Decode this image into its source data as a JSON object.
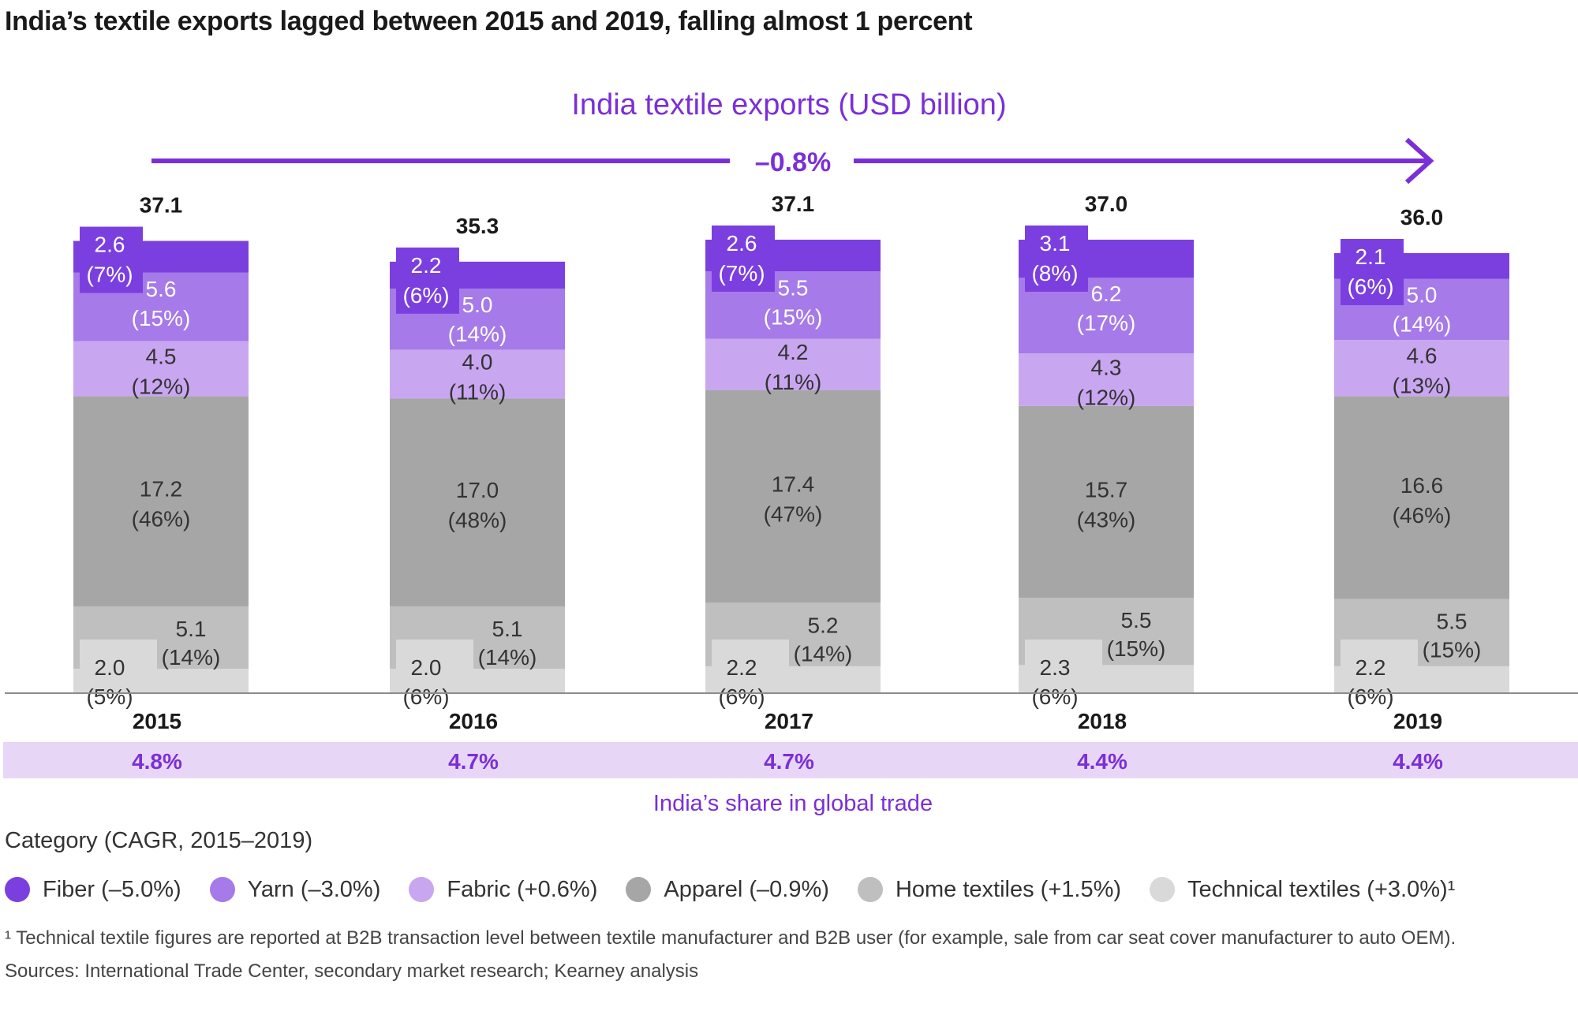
{
  "title": "India’s textile exports lagged between 2015 and 2019, falling almost 1 percent",
  "subtitle": "India textile exports (USD billion)",
  "cagr_label": "–0.8%",
  "share_caption": "India’s share in global trade",
  "category_title": "Category (CAGR, 2015–2019)",
  "footnote": "¹ Technical textile figures are reported at B2B transaction level between textile manufacturer and B2B user (for example, sale from car seat cover manufacturer to auto OEM).",
  "source": "Sources: International Trade Center, secondary market research; Kearney analysis",
  "colors": {
    "Fiber": "#7b3fe0",
    "Yarn": "#a67ae8",
    "Fabric": "#c9a6f0",
    "Apparel": "#a6a6a6",
    "Home textiles": "#bfbfbf",
    "Technical textiles": "#d9d9d9",
    "accent": "#7b2fd6",
    "share_band": "#e8d6f7"
  },
  "legend": [
    {
      "key": "Fiber",
      "label": "Fiber (–5.0%)"
    },
    {
      "key": "Yarn",
      "label": "Yarn (–3.0%)"
    },
    {
      "key": "Fabric",
      "label": "Fabric (+0.6%)"
    },
    {
      "key": "Apparel",
      "label": "Apparel (–0.9%)"
    },
    {
      "key": "Home textiles",
      "label": "Home textiles (+1.5%)"
    },
    {
      "key": "Technical textiles",
      "label": "Technical textiles (+3.0%)¹"
    }
  ],
  "chart_data": {
    "type": "bar",
    "stacked": true,
    "categories": [
      "2015",
      "2016",
      "2017",
      "2018",
      "2019"
    ],
    "totals": [
      "37.1",
      "35.3",
      "37.1",
      "37.0",
      "36.0"
    ],
    "share_in_global_trade": [
      "4.8%",
      "4.7%",
      "4.7%",
      "4.4%",
      "4.4%"
    ],
    "series": [
      {
        "name": "Technical textiles",
        "values": [
          2.0,
          2.0,
          2.2,
          2.3,
          2.2
        ],
        "labels": [
          "2.0",
          "2.0",
          "2.2",
          "2.3",
          "2.2"
        ],
        "pct": [
          "(5%)",
          "(6%)",
          "(6%)",
          "(6%)",
          "(6%)"
        ]
      },
      {
        "name": "Home textiles",
        "values": [
          5.1,
          5.1,
          5.2,
          5.5,
          5.5
        ],
        "labels": [
          "5.1",
          "5.1",
          "5.2",
          "5.5",
          "5.5"
        ],
        "pct": [
          "(14%)",
          "(14%)",
          "(14%)",
          "(15%)",
          "(15%)"
        ]
      },
      {
        "name": "Apparel",
        "values": [
          17.2,
          17.0,
          17.4,
          15.7,
          16.6
        ],
        "labels": [
          "17.2",
          "17.0",
          "17.4",
          "15.7",
          "16.6"
        ],
        "pct": [
          "(46%)",
          "(48%)",
          "(47%)",
          "(43%)",
          "(46%)"
        ]
      },
      {
        "name": "Fabric",
        "values": [
          4.5,
          4.0,
          4.2,
          4.3,
          4.6
        ],
        "labels": [
          "4.5",
          "4.0",
          "4.2",
          "4.3",
          "4.6"
        ],
        "pct": [
          "(12%)",
          "(11%)",
          "(11%)",
          "(12%)",
          "(13%)"
        ]
      },
      {
        "name": "Yarn",
        "values": [
          5.6,
          5.0,
          5.5,
          6.2,
          5.0
        ],
        "labels": [
          "5.6",
          "5.0",
          "5.5",
          "6.2",
          "5.0"
        ],
        "pct": [
          "(15%)",
          "(14%)",
          "(15%)",
          "(17%)",
          "(14%)"
        ]
      },
      {
        "name": "Fiber",
        "values": [
          2.6,
          2.2,
          2.6,
          3.1,
          2.1
        ],
        "labels": [
          "2.6",
          "2.2",
          "2.6",
          "3.1",
          "2.1"
        ],
        "pct": [
          "(7%)",
          "(6%)",
          "(7%)",
          "(8%)",
          "(6%)"
        ]
      }
    ]
  }
}
